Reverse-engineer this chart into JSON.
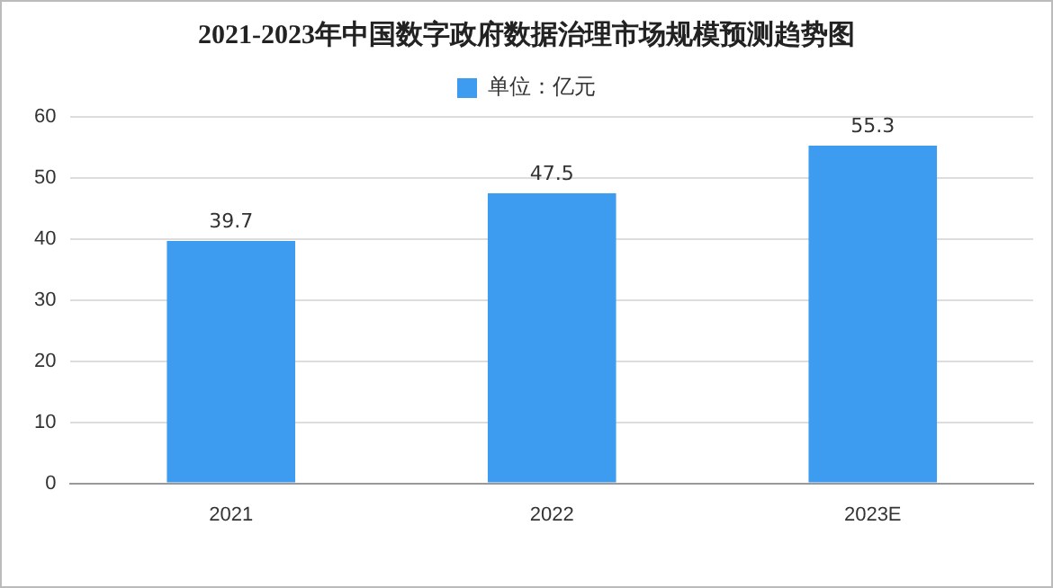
{
  "chart_data": {
    "type": "bar",
    "title": "2021-2023年中国数字政府数据治理市场规模预测趋势图",
    "categories": [
      "2021",
      "2022",
      "2023E"
    ],
    "series": [
      {
        "name": "单位：亿元",
        "color": "#3d9cef",
        "values": [
          39.7,
          47.5,
          55.3
        ]
      }
    ],
    "ylim": [
      0,
      60
    ],
    "yticks": [
      0,
      10,
      20,
      30,
      40,
      50,
      60
    ],
    "grid": "y",
    "legend": "top",
    "data_labels": true
  }
}
